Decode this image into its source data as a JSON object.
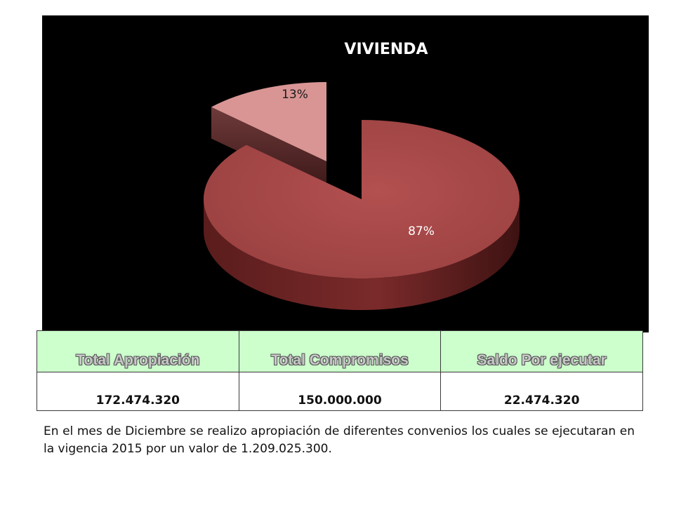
{
  "chart_data": {
    "type": "pie",
    "title": "VIVIENDA",
    "slices": [
      {
        "label": "13%",
        "value": 13,
        "color": "#d99594"
      },
      {
        "label": "87%",
        "value": 87,
        "color": "#a04848"
      }
    ],
    "three_d": true,
    "exploded": true,
    "background": "#000000"
  },
  "table": {
    "headers": [
      "Total Apropiación",
      "Total Compromisos",
      "Saldo Por ejecutar"
    ],
    "values": [
      "172.474.320",
      "150.000.000",
      "22.474.320"
    ],
    "header_color": "#ccffcc"
  },
  "note": "En el mes de Diciembre se realizo apropiación de diferentes convenios los cuales se ejecutaran en la vigencia 2015 por un valor de 1.209.025.300."
}
